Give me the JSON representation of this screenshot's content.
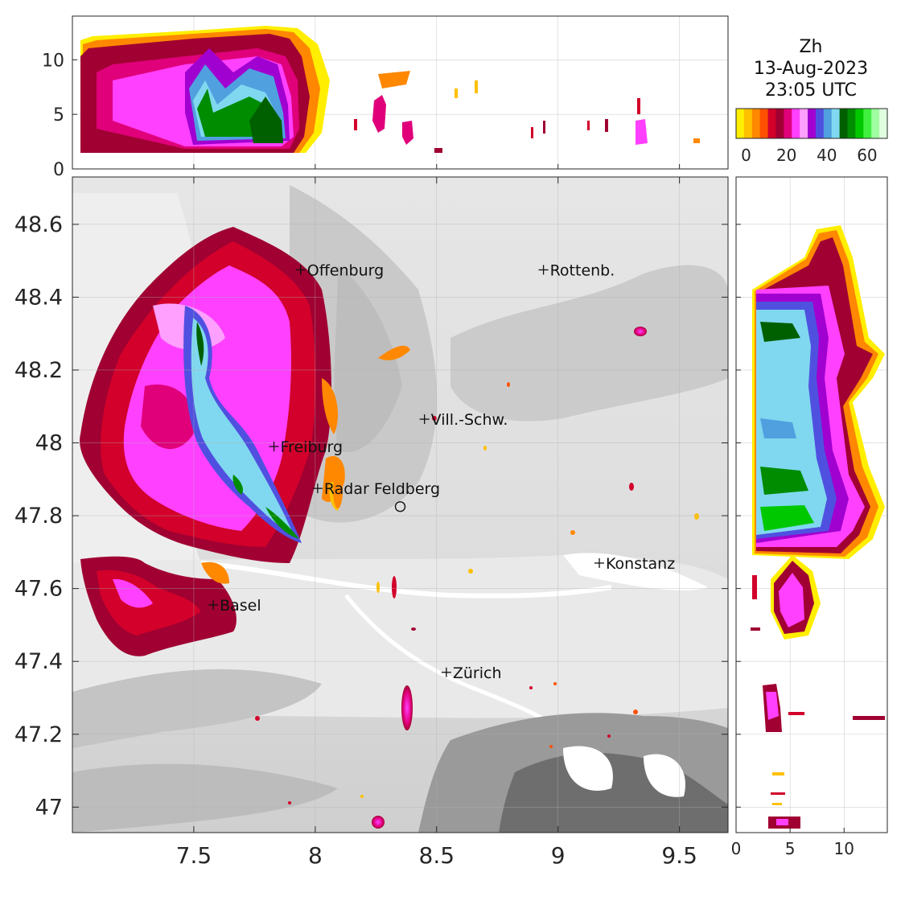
{
  "title": {
    "variable": "Zh",
    "date": "13-Aug-2023",
    "time": "23:05 UTC"
  },
  "colorbar": {
    "colors": [
      "#ffee00",
      "#ffc000",
      "#ff8800",
      "#ff5000",
      "#d2002a",
      "#a00032",
      "#e0007a",
      "#ff40ff",
      "#ffa0ff",
      "#a000d0",
      "#5050e0",
      "#50a0e0",
      "#80d8f0",
      "#006000",
      "#008c00",
      "#00c800",
      "#40f040",
      "#a0ffa0",
      "#e0ffe0"
    ],
    "ticks": [
      "0",
      "20",
      "40",
      "60"
    ]
  },
  "main_map": {
    "lon_ticks": [
      "7.5",
      "8",
      "8.5",
      "9",
      "9.5"
    ],
    "lat_ticks": [
      "48.6",
      "48.4",
      "48.2",
      "48",
      "47.8",
      "47.6",
      "47.4",
      "47.2",
      "47"
    ],
    "lon_range": [
      7.0,
      9.7
    ],
    "lat_range": [
      46.93,
      48.73
    ]
  },
  "top_panel": {
    "z_ticks": [
      "10",
      "5",
      "0"
    ],
    "z_range": [
      0,
      14
    ]
  },
  "right_panel": {
    "z_ticks": [
      "0",
      "5",
      "10"
    ],
    "z_range": [
      0,
      14
    ]
  },
  "cities": [
    {
      "name": "Offenburg",
      "lon": 7.94,
      "lat": 48.475
    },
    {
      "name": "Rottenb.",
      "lon": 8.94,
      "lat": 48.475
    },
    {
      "name": "Vill.-Schw.",
      "lon": 8.45,
      "lat": 48.065
    },
    {
      "name": "Freiburg",
      "lon": 7.83,
      "lat": 47.99
    },
    {
      "name": "Radar Feldberg",
      "lon": 8.01,
      "lat": 47.875
    },
    {
      "name": "Konstanz",
      "lon": 9.17,
      "lat": 47.67
    },
    {
      "name": "Basel",
      "lon": 7.58,
      "lat": 47.555
    },
    {
      "name": "Zürich",
      "lon": 8.54,
      "lat": 47.37
    }
  ],
  "radar_site": {
    "lon": 8.35,
    "lat": 47.825
  }
}
